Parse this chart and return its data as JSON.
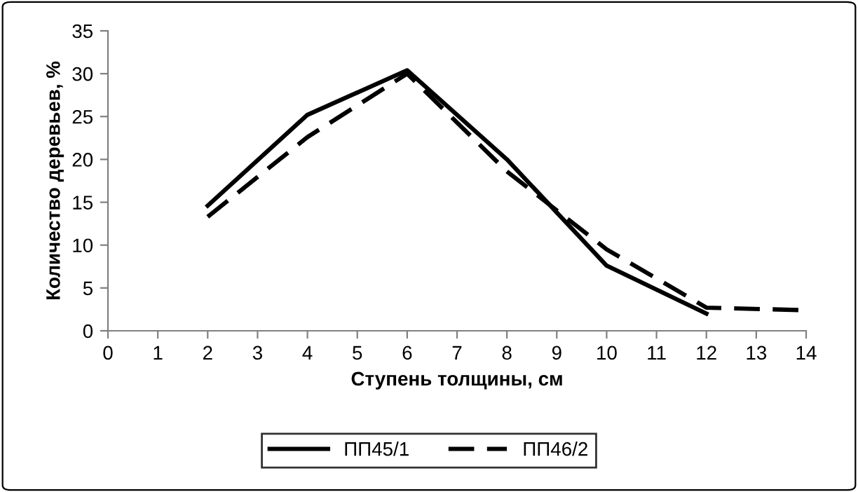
{
  "chart_data": {
    "type": "line",
    "xlabel": "Ступень толщины, см",
    "ylabel": "Количество деревьев, %",
    "x": [
      2,
      4,
      6,
      8,
      10,
      12,
      14
    ],
    "series": [
      {
        "name": "ПП45/1",
        "color": "#000000",
        "line_style": "solid",
        "values": [
          14.6,
          25.2,
          30.4,
          20.0,
          7.6,
          2.0,
          null
        ]
      },
      {
        "name": "ПП46/2",
        "color": "#000000",
        "line_style": "dashed",
        "values": [
          13.3,
          22.6,
          30.0,
          18.6,
          9.5,
          2.7,
          2.4
        ]
      }
    ],
    "xlim": [
      0,
      14
    ],
    "xticks": [
      0,
      1,
      2,
      3,
      4,
      5,
      6,
      7,
      8,
      9,
      10,
      11,
      12,
      13,
      14
    ],
    "ylim": [
      0,
      35
    ],
    "yticks": [
      0,
      5,
      10,
      15,
      20,
      25,
      30,
      35
    ],
    "grid": false,
    "legend": "bottom",
    "marker": "none"
  }
}
